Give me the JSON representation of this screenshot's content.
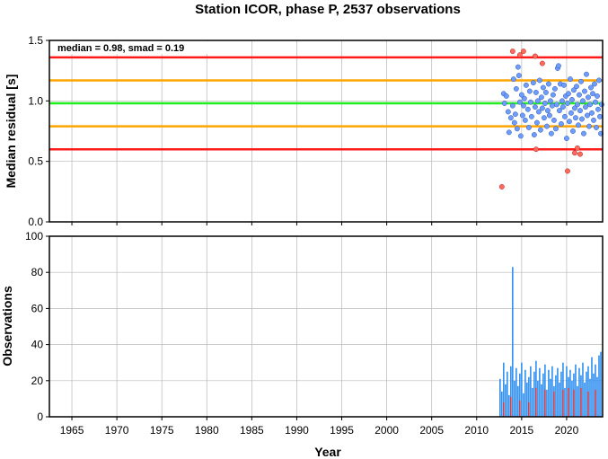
{
  "chart_data": [
    {
      "type": "scatter",
      "title": "Station ICOR, phase P, 2537 observations",
      "xlabel": "",
      "ylabel": "Median residual [s]",
      "annotation": "median = 0.98, smad = 0.19",
      "xlim": [
        1962.5,
        2024
      ],
      "ylim": [
        0,
        1.5
      ],
      "y_ticks": [
        "0.0",
        "0.5",
        "1.0",
        "1.5"
      ],
      "grid": true,
      "reference_lines": [
        {
          "y": 1.36,
          "color": "#ff1a1a"
        },
        {
          "y": 1.17,
          "color": "#ffa500"
        },
        {
          "y": 0.98,
          "color": "#22ee22"
        },
        {
          "y": 0.79,
          "color": "#ffa500"
        },
        {
          "y": 0.6,
          "color": "#ff1a1a"
        }
      ],
      "series": [
        {
          "color": "#6d9eff",
          "points": [
            [
              2013.0,
              1.06
            ],
            [
              2013.1,
              0.98
            ],
            [
              2013.3,
              1.04
            ],
            [
              2013.5,
              0.91
            ],
            [
              2013.6,
              0.74
            ],
            [
              2013.8,
              0.86
            ],
            [
              2014.0,
              0.96
            ],
            [
              2014.1,
              1.18
            ],
            [
              2014.2,
              0.82
            ],
            [
              2014.3,
              0.89
            ],
            [
              2014.4,
              1.1
            ],
            [
              2014.5,
              0.77
            ],
            [
              2014.6,
              1.28
            ],
            [
              2014.7,
              1.21
            ],
            [
              2014.8,
              0.99
            ],
            [
              2014.9,
              0.71
            ],
            [
              2015.0,
              1.05
            ],
            [
              2015.1,
              0.88
            ],
            [
              2015.2,
              0.96
            ],
            [
              2015.3,
              1.02
            ],
            [
              2015.4,
              0.84
            ],
            [
              2015.5,
              1.13
            ],
            [
              2015.7,
              0.93
            ],
            [
              2015.8,
              0.78
            ],
            [
              2015.9,
              1.08
            ],
            [
              2016.0,
              0.99
            ],
            [
              2016.1,
              0.87
            ],
            [
              2016.3,
              1.15
            ],
            [
              2016.4,
              0.72
            ],
            [
              2016.5,
              0.95
            ],
            [
              2016.6,
              1.07
            ],
            [
              2016.7,
              0.82
            ],
            [
              2016.8,
              1.0
            ],
            [
              2016.9,
              0.91
            ],
            [
              2017.0,
              1.17
            ],
            [
              2017.1,
              0.76
            ],
            [
              2017.2,
              1.03
            ],
            [
              2017.3,
              0.94
            ],
            [
              2017.4,
              1.11
            ],
            [
              2017.5,
              0.86
            ],
            [
              2017.6,
              0.98
            ],
            [
              2017.7,
              1.07
            ],
            [
              2017.8,
              0.79
            ],
            [
              2017.9,
              0.92
            ],
            [
              2018.0,
              1.14
            ],
            [
              2018.1,
              0.88
            ],
            [
              2018.2,
              1.0
            ],
            [
              2018.3,
              0.73
            ],
            [
              2018.4,
              0.96
            ],
            [
              2018.5,
              1.05
            ],
            [
              2018.6,
              0.84
            ],
            [
              2018.7,
              1.1
            ],
            [
              2018.8,
              0.77
            ],
            [
              2018.9,
              0.97
            ],
            [
              2019.0,
              1.27
            ],
            [
              2019.1,
              1.29
            ],
            [
              2019.2,
              0.92
            ],
            [
              2019.3,
              1.14
            ],
            [
              2019.4,
              0.81
            ],
            [
              2019.5,
              1.0
            ],
            [
              2019.6,
              0.95
            ],
            [
              2019.7,
              1.13
            ],
            [
              2019.8,
              0.87
            ],
            [
              2019.9,
              1.04
            ],
            [
              2020.0,
              0.69
            ],
            [
              2020.1,
              0.98
            ],
            [
              2020.2,
              1.06
            ],
            [
              2020.3,
              0.83
            ],
            [
              2020.4,
              1.18
            ],
            [
              2020.5,
              0.9
            ],
            [
              2020.6,
              1.01
            ],
            [
              2020.7,
              0.75
            ],
            [
              2020.8,
              1.09
            ],
            [
              2020.9,
              0.94
            ],
            [
              2021.0,
              0.86
            ],
            [
              2021.1,
              1.12
            ],
            [
              2021.2,
              0.97
            ],
            [
              2021.3,
              0.8
            ],
            [
              2021.4,
              1.05
            ],
            [
              2021.5,
              0.92
            ],
            [
              2021.6,
              1.16
            ],
            [
              2021.7,
              0.85
            ],
            [
              2021.8,
              1.0
            ],
            [
              2021.9,
              0.73
            ],
            [
              2022.0,
              1.08
            ],
            [
              2022.1,
              0.95
            ],
            [
              2022.2,
              1.22
            ],
            [
              2022.3,
              0.88
            ],
            [
              2022.4,
              1.03
            ],
            [
              2022.5,
              0.79
            ],
            [
              2022.6,
              0.97
            ],
            [
              2022.7,
              1.11
            ],
            [
              2022.8,
              0.9
            ],
            [
              2022.9,
              1.06
            ],
            [
              2023.0,
              0.84
            ],
            [
              2023.1,
              1.14
            ],
            [
              2023.2,
              0.99
            ],
            [
              2023.3,
              0.78
            ],
            [
              2023.4,
              1.04
            ],
            [
              2023.5,
              0.93
            ],
            [
              2023.6,
              1.17
            ],
            [
              2023.7,
              0.87
            ],
            [
              2023.8,
              0.73
            ],
            [
              2023.9,
              0.97
            ]
          ]
        },
        {
          "color": "#ff6a5c",
          "points": [
            [
              2012.8,
              0.29
            ],
            [
              2014.0,
              1.41
            ],
            [
              2014.8,
              1.38
            ],
            [
              2015.2,
              1.41
            ],
            [
              2016.5,
              1.37
            ],
            [
              2017.3,
              1.31
            ],
            [
              2016.6,
              0.6
            ],
            [
              2020.1,
              0.42
            ],
            [
              2020.9,
              0.57
            ],
            [
              2021.2,
              0.61
            ],
            [
              2021.5,
              0.56
            ]
          ]
        }
      ]
    },
    {
      "type": "bar",
      "xlabel": "Year",
      "ylabel": "Observations",
      "xlim": [
        1962.5,
        2024
      ],
      "ylim": [
        0,
        100
      ],
      "x_ticks": [
        "1965",
        "1970",
        "1975",
        "1980",
        "1985",
        "1990",
        "1995",
        "2000",
        "2005",
        "2010",
        "2015",
        "2020"
      ],
      "y_ticks": [
        "0",
        "20",
        "40",
        "60",
        "80",
        "100"
      ],
      "grid": true,
      "series": [
        {
          "color": "#2f8ff0",
          "x": [
            2012.6,
            2012.8,
            2013.0,
            2013.2,
            2013.4,
            2013.6,
            2013.8,
            2014.0,
            2014.2,
            2014.4,
            2014.6,
            2014.8,
            2015.0,
            2015.2,
            2015.4,
            2015.6,
            2015.8,
            2016.0,
            2016.2,
            2016.4,
            2016.6,
            2016.8,
            2017.0,
            2017.2,
            2017.4,
            2017.6,
            2017.8,
            2018.0,
            2018.2,
            2018.4,
            2018.6,
            2018.8,
            2019.0,
            2019.2,
            2019.4,
            2019.6,
            2019.8,
            2020.0,
            2020.2,
            2020.4,
            2020.6,
            2020.8,
            2021.0,
            2021.2,
            2021.4,
            2021.6,
            2021.8,
            2022.0,
            2022.2,
            2022.4,
            2022.6,
            2022.8,
            2023.0,
            2023.2,
            2023.4,
            2023.6,
            2023.8
          ],
          "values": [
            21,
            14,
            30,
            18,
            25,
            12,
            28,
            83,
            20,
            27,
            17,
            24,
            30,
            13,
            26,
            19,
            22,
            28,
            16,
            25,
            31,
            20,
            27,
            18,
            24,
            29,
            15,
            26,
            21,
            28,
            17,
            23,
            27,
            19,
            25,
            30,
            16,
            28,
            22,
            26,
            20,
            24,
            29,
            17,
            27,
            23,
            30,
            19,
            25,
            28,
            21,
            33,
            24,
            29,
            22,
            34,
            36
          ]
        },
        {
          "color": "#e03333",
          "x": [
            2013.0,
            2013.8,
            2014.8,
            2015.8,
            2016.6,
            2017.6,
            2018.6,
            2019.6,
            2020.2,
            2020.8,
            2021.6,
            2022.4,
            2023.2
          ],
          "values": [
            8,
            11,
            9,
            8,
            16,
            15,
            14,
            15,
            16,
            15,
            16,
            14,
            15
          ]
        }
      ]
    }
  ]
}
